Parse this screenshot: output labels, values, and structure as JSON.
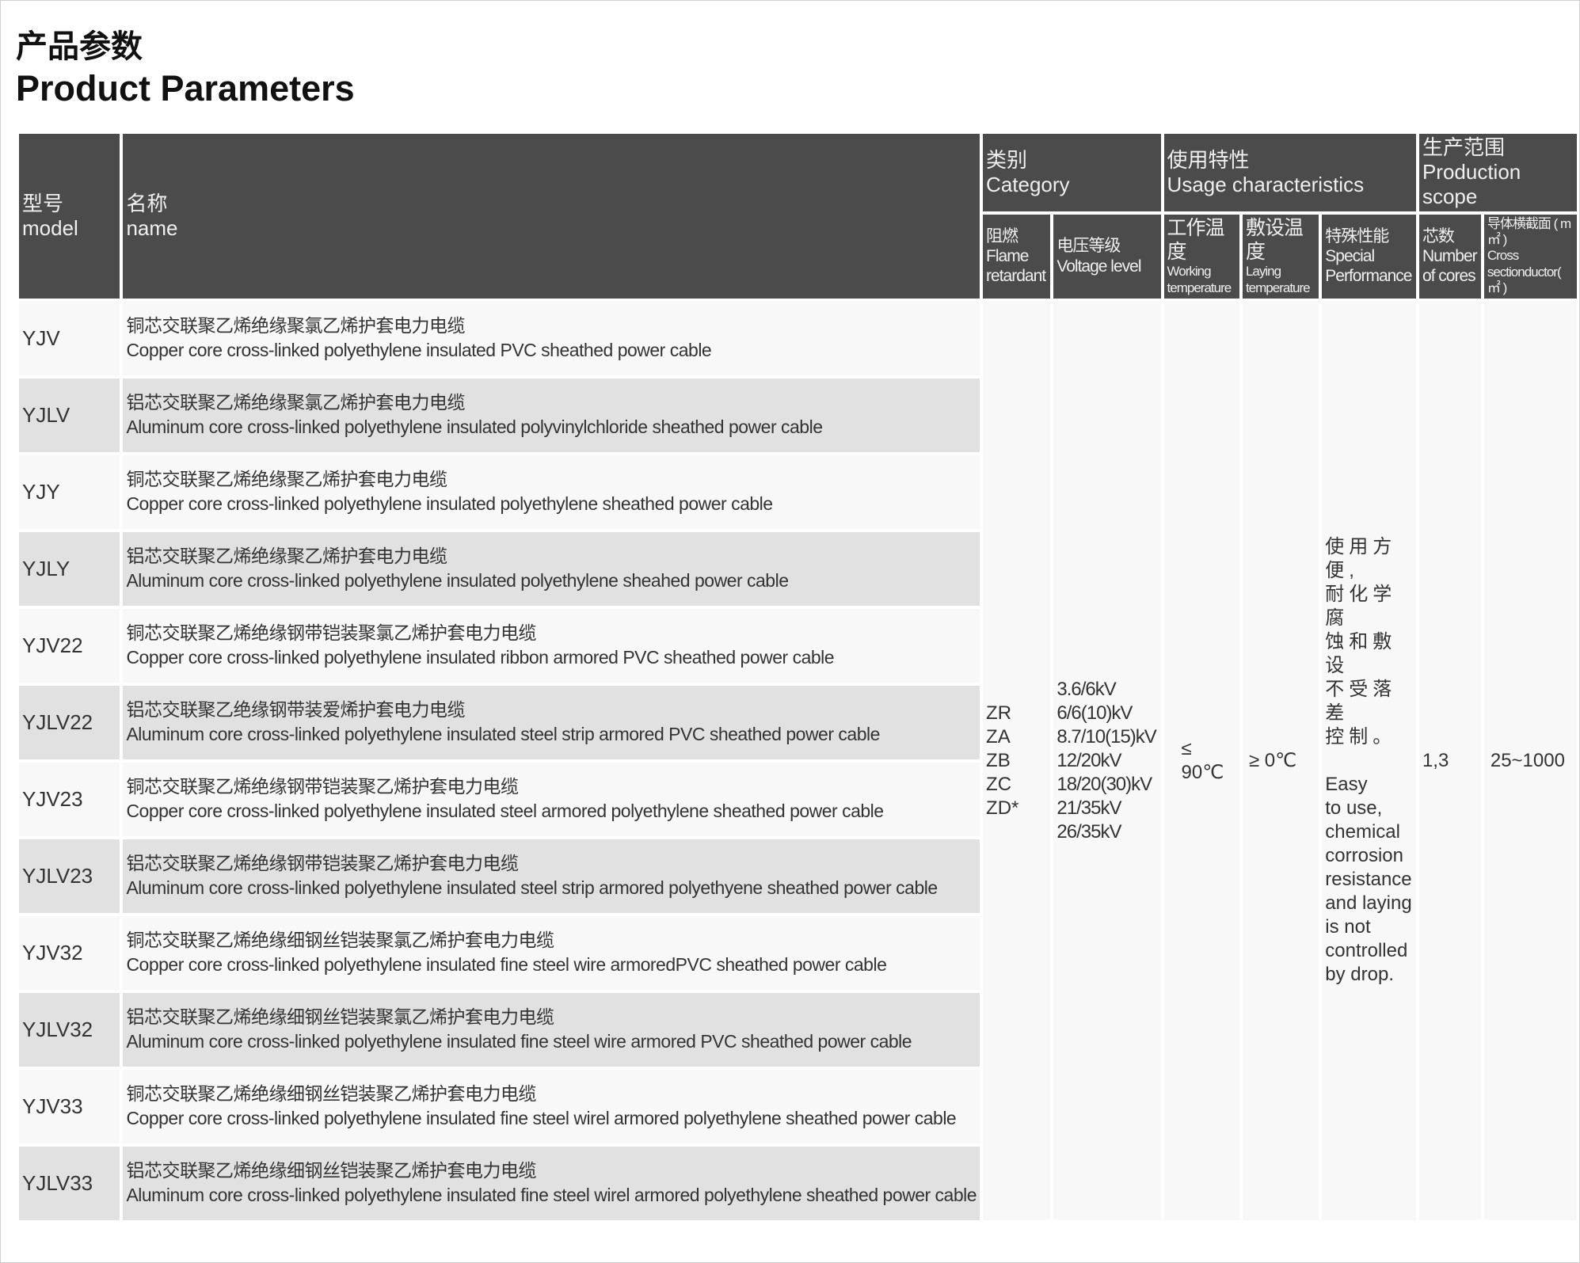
{
  "title_cn": "产品参数",
  "title_en": "Product Parameters",
  "headers": {
    "model": {
      "cn": "型号",
      "en": "model"
    },
    "name": {
      "cn": "名称",
      "en": "name"
    },
    "category": {
      "cn": "类别",
      "en": "Category"
    },
    "usage": {
      "cn": "使用特性",
      "en": "Usage characteristics"
    },
    "production": {
      "cn": "生产范围",
      "en": "Production scope"
    },
    "flame": {
      "cn": "阻燃",
      "en1": "Flame",
      "en2": "retardant"
    },
    "voltage": {
      "cn": "电压等级",
      "en": "Voltage level"
    },
    "working": {
      "cn": "工作温度",
      "en1": "Working",
      "en2": "temperature"
    },
    "laying": {
      "cn": "敷设温度",
      "en": "Laying temperature"
    },
    "special": {
      "cn": "特殊性能",
      "en1": "Special",
      "en2": "Performance"
    },
    "cores": {
      "cn": "芯数",
      "en1": "Number",
      "en2": "of cores"
    },
    "cross": {
      "cn": "导体横截面 ( m㎡ )",
      "en": "Cross sectionductor( ㎡ )"
    }
  },
  "rows": [
    {
      "model": "YJV",
      "cn": "铜芯交联聚乙烯绝缘聚氯乙烯护套电力电缆",
      "en": "Copper core cross-linked polyethylene insulated PVC sheathed power cable"
    },
    {
      "model": "YJLV",
      "cn": "铝芯交联聚乙烯绝缘聚氯乙烯护套电力电缆",
      "en": "Aluminum core cross-linked polyethylene insulated polyvinylchloride sheathed power cable"
    },
    {
      "model": "YJY",
      "cn": "铜芯交联聚乙烯绝缘聚乙烯护套电力电缆",
      "en": "Copper core cross-linked polyethylene insulated polyethylene sheathed power cable"
    },
    {
      "model": "YJLY",
      "cn": "铝芯交联聚乙烯绝缘聚乙烯护套电力电缆",
      "en": "Aluminum core cross-linked polyethylene insulated polyethylene sheahed power cable"
    },
    {
      "model": "YJV22",
      "cn": "铜芯交联聚乙烯绝缘钢带铠装聚氯乙烯护套电力电缆",
      "en": "Copper core cross-linked polyethylene insulated ribbon armored PVC sheathed power cable"
    },
    {
      "model": "YJLV22",
      "cn": "铝芯交联聚乙绝缘钢带装爱烯护套电力电缆",
      "en": "Aluminum core cross-linked polyethylene insulated steel strip armored PVC sheathed power cable"
    },
    {
      "model": "YJV23",
      "cn": "铜芯交联聚乙烯绝缘钢带铠装聚乙烯护套电力电缆",
      "en": "Copper core cross-linked polyethylene insulated steel armored polyethylene sheathed power cable"
    },
    {
      "model": "YJLV23",
      "cn": "铝芯交联聚乙烯绝缘钢带铠装聚乙烯护套电力电缆",
      "en": "Aluminum core cross-linked polyethylene insulated steel strip armored polyethyene sheathed power cable"
    },
    {
      "model": "YJV32",
      "cn": "铜芯交联聚乙烯绝缘细钢丝铠装聚氯乙烯护套电力电缆",
      "en": "Copper core cross-linked polyethylene insulated fine steel wire armoredPVC sheathed power cable"
    },
    {
      "model": "YJLV32",
      "cn": "铝芯交联聚乙烯绝缘细钢丝铠装聚氯乙烯护套电力电缆",
      "en": "Aluminum core cross-linked polyethylene insulated fine steel wire armored PVC sheathed power cable"
    },
    {
      "model": "YJV33",
      "cn": "铜芯交联聚乙烯绝缘细钢丝铠装聚乙烯护套电力电缆",
      "en": "Copper core cross-linked polyethylene insulated fine steel wirel armored polyethylene sheathed power cable"
    },
    {
      "model": "YJLV33",
      "cn": "铝芯交联聚乙烯绝缘细钢丝铠装聚乙烯护套电力电缆",
      "en": "Aluminum core cross-linked polyethylene insulated fine steel wirel armored polyethylene sheathed power cable"
    }
  ],
  "shared": {
    "flame": [
      "ZR",
      "ZA",
      "ZB",
      "ZC",
      "ZD*"
    ],
    "voltage": [
      "3.6/6kV",
      "6/6(10)kV",
      "8.7/10(15)kV",
      "12/20kV",
      "18/20(30)kV",
      "21/35kV",
      "26/35kV"
    ],
    "working_temp": "≤ 90℃",
    "laying_temp": "≥ 0℃",
    "special_cn": [
      "使用方便,",
      "耐化学腐",
      "蚀和敷设",
      "不受落差",
      "控制。"
    ],
    "special_en": [
      "Easy",
      "to use,",
      "chemical",
      "corrosion",
      "resistance",
      "and laying",
      "is not",
      "controlled",
      "by drop."
    ],
    "cores": "1,3",
    "cross_section": "25~1000"
  },
  "colors": {
    "header_bg": "#4b4b4b",
    "header_text": "#efefef",
    "row_alt": "#e1e1e1",
    "row_light": "#f8f8f8"
  }
}
